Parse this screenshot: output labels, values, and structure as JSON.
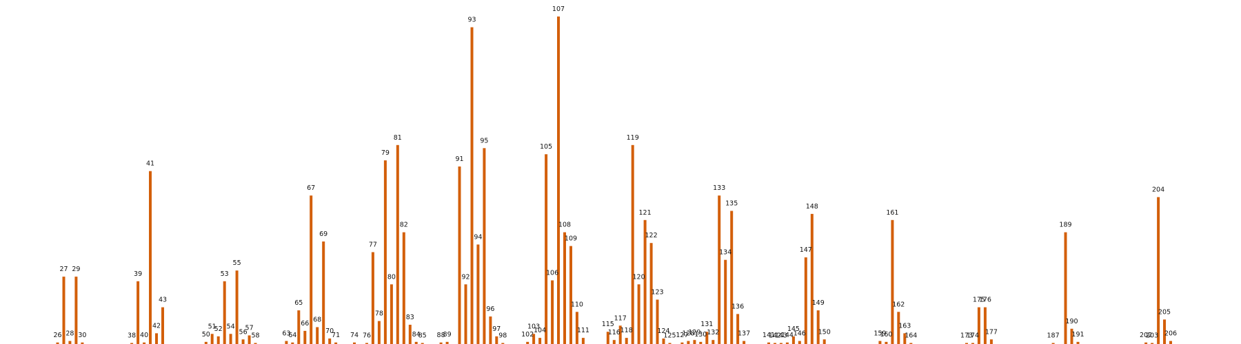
{
  "colors": {
    "bar": "#d35f0a",
    "label": "#111111",
    "background": "#ffffff"
  },
  "chart_data": {
    "type": "bar",
    "title": "",
    "xlabel": "",
    "ylabel": "",
    "ylim": [
      0,
      107
    ],
    "grid": false,
    "legend": "none",
    "bars": [
      {
        "label": "26",
        "x": 26,
        "value": 0.5
      },
      {
        "label": "27",
        "x": 27,
        "value": 22
      },
      {
        "label": "28",
        "x": 28,
        "value": 1
      },
      {
        "label": "29",
        "x": 29,
        "value": 22
      },
      {
        "label": "30",
        "x": 30,
        "value": 0.5
      },
      {
        "label": "38",
        "x": 38,
        "value": 0.3
      },
      {
        "label": "39",
        "x": 39,
        "value": 20.5
      },
      {
        "label": "40",
        "x": 40,
        "value": 0.5
      },
      {
        "label": "41",
        "x": 41,
        "value": 56.5
      },
      {
        "label": "42",
        "x": 42,
        "value": 3.5
      },
      {
        "label": "43",
        "x": 43,
        "value": 12
      },
      {
        "label": "50",
        "x": 50,
        "value": 0.7
      },
      {
        "label": "51",
        "x": 51,
        "value": 3.3
      },
      {
        "label": "52",
        "x": 52,
        "value": 2.5
      },
      {
        "label": "53",
        "x": 53,
        "value": 20.5
      },
      {
        "label": "54",
        "x": 54,
        "value": 3.3
      },
      {
        "label": "55",
        "x": 55,
        "value": 24
      },
      {
        "label": "56",
        "x": 56,
        "value": 1.5
      },
      {
        "label": "57",
        "x": 57,
        "value": 2.8
      },
      {
        "label": "58",
        "x": 58,
        "value": 0.3
      },
      {
        "label": "63",
        "x": 63,
        "value": 1
      },
      {
        "label": "64",
        "x": 64,
        "value": 0.5
      },
      {
        "label": "65",
        "x": 65,
        "value": 11
      },
      {
        "label": "66",
        "x": 66,
        "value": 4.3
      },
      {
        "label": "67",
        "x": 67,
        "value": 48.5
      },
      {
        "label": "68",
        "x": 68,
        "value": 5.5
      },
      {
        "label": "69",
        "x": 69,
        "value": 33.5
      },
      {
        "label": "70",
        "x": 70,
        "value": 1.8
      },
      {
        "label": "71",
        "x": 71,
        "value": 0.5
      },
      {
        "label": "74",
        "x": 74,
        "value": 0.5
      },
      {
        "label": "76",
        "x": 76,
        "value": 0.3
      },
      {
        "label": "77",
        "x": 77,
        "value": 30
      },
      {
        "label": "78",
        "x": 78,
        "value": 7.5
      },
      {
        "label": "79",
        "x": 79,
        "value": 60
      },
      {
        "label": "80",
        "x": 80,
        "value": 19.5
      },
      {
        "label": "81",
        "x": 81,
        "value": 65
      },
      {
        "label": "82",
        "x": 82,
        "value": 36.5
      },
      {
        "label": "83",
        "x": 83,
        "value": 6.3
      },
      {
        "label": "84",
        "x": 84,
        "value": 0.7
      },
      {
        "label": "85",
        "x": 85,
        "value": 0.3
      },
      {
        "label": "88",
        "x": 88,
        "value": 0.5
      },
      {
        "label": "89",
        "x": 89,
        "value": 0.7
      },
      {
        "label": "91",
        "x": 91,
        "value": 58
      },
      {
        "label": "92",
        "x": 92,
        "value": 19.5
      },
      {
        "label": "93",
        "x": 93,
        "value": 103.5
      },
      {
        "label": "94",
        "x": 94,
        "value": 32.5
      },
      {
        "label": "95",
        "x": 95,
        "value": 64
      },
      {
        "label": "96",
        "x": 96,
        "value": 9
      },
      {
        "label": "97",
        "x": 97,
        "value": 2.5
      },
      {
        "label": "98",
        "x": 98,
        "value": 0.3
      },
      {
        "label": "102",
        "x": 102,
        "value": 0.7
      },
      {
        "label": "103",
        "x": 103,
        "value": 3.3
      },
      {
        "label": "104",
        "x": 104,
        "value": 2
      },
      {
        "label": "105",
        "x": 105,
        "value": 62
      },
      {
        "label": "106",
        "x": 106,
        "value": 20.8
      },
      {
        "label": "107",
        "x": 107,
        "value": 107
      },
      {
        "label": "108",
        "x": 108,
        "value": 36.5
      },
      {
        "label": "109",
        "x": 109,
        "value": 32
      },
      {
        "label": "110",
        "x": 110,
        "value": 10.5
      },
      {
        "label": "111",
        "x": 111,
        "value": 2
      },
      {
        "label": "115",
        "x": 115,
        "value": 4
      },
      {
        "label": "116",
        "x": 116,
        "value": 1.3
      },
      {
        "label": "117",
        "x": 117,
        "value": 6
      },
      {
        "label": "118",
        "x": 118,
        "value": 2
      },
      {
        "label": "119",
        "x": 119,
        "value": 65
      },
      {
        "label": "120",
        "x": 120,
        "value": 19.5
      },
      {
        "label": "121",
        "x": 121,
        "value": 40.5
      },
      {
        "label": "122",
        "x": 122,
        "value": 33
      },
      {
        "label": "123",
        "x": 123,
        "value": 14.5
      },
      {
        "label": "124",
        "x": 124,
        "value": 1.8
      },
      {
        "label": "125",
        "x": 125,
        "value": 0.3
      },
      {
        "label": "127",
        "x": 127,
        "value": 0.5
      },
      {
        "label": "128",
        "x": 128,
        "value": 1
      },
      {
        "label": "129",
        "x": 129,
        "value": 1.3
      },
      {
        "label": "130",
        "x": 130,
        "value": 0.7
      },
      {
        "label": "131",
        "x": 131,
        "value": 4
      },
      {
        "label": "132",
        "x": 132,
        "value": 1.3
      },
      {
        "label": "133",
        "x": 133,
        "value": 48.5
      },
      {
        "label": "134",
        "x": 134,
        "value": 27.5
      },
      {
        "label": "135",
        "x": 135,
        "value": 43.5
      },
      {
        "label": "136",
        "x": 136,
        "value": 9.8
      },
      {
        "label": "137",
        "x": 137,
        "value": 1
      },
      {
        "label": "141",
        "x": 141,
        "value": 0.5
      },
      {
        "label": "142",
        "x": 142,
        "value": 0.3
      },
      {
        "label": "143",
        "x": 143,
        "value": 0.3
      },
      {
        "label": "144",
        "x": 144,
        "value": 0.5
      },
      {
        "label": "145",
        "x": 145,
        "value": 2.5
      },
      {
        "label": "146",
        "x": 146,
        "value": 1
      },
      {
        "label": "147",
        "x": 147,
        "value": 28.3
      },
      {
        "label": "148",
        "x": 148,
        "value": 42.5
      },
      {
        "label": "149",
        "x": 149,
        "value": 11
      },
      {
        "label": "150",
        "x": 150,
        "value": 1.5
      },
      {
        "label": "159",
        "x": 159,
        "value": 1
      },
      {
        "label": "160",
        "x": 160,
        "value": 0.7
      },
      {
        "label": "161",
        "x": 161,
        "value": 40.5
      },
      {
        "label": "162",
        "x": 162,
        "value": 10.5
      },
      {
        "label": "163",
        "x": 163,
        "value": 3.5
      },
      {
        "label": "164",
        "x": 164,
        "value": 0.3
      },
      {
        "label": "173",
        "x": 173,
        "value": 0.3
      },
      {
        "label": "174",
        "x": 174,
        "value": 0.3
      },
      {
        "label": "175",
        "x": 175,
        "value": 12
      },
      {
        "label": "176",
        "x": 176,
        "value": 12
      },
      {
        "label": "177",
        "x": 177,
        "value": 1.5
      },
      {
        "label": "187",
        "x": 187,
        "value": 0.3
      },
      {
        "label": "189",
        "x": 189,
        "value": 36.5
      },
      {
        "label": "190",
        "x": 190,
        "value": 5
      },
      {
        "label": "191",
        "x": 191,
        "value": 0.7
      },
      {
        "label": "202",
        "x": 202,
        "value": 0.5
      },
      {
        "label": "203",
        "x": 203,
        "value": 0.3
      },
      {
        "label": "204",
        "x": 204,
        "value": 48
      },
      {
        "label": "205",
        "x": 205,
        "value": 8
      },
      {
        "label": "206",
        "x": 206,
        "value": 1
      }
    ]
  }
}
